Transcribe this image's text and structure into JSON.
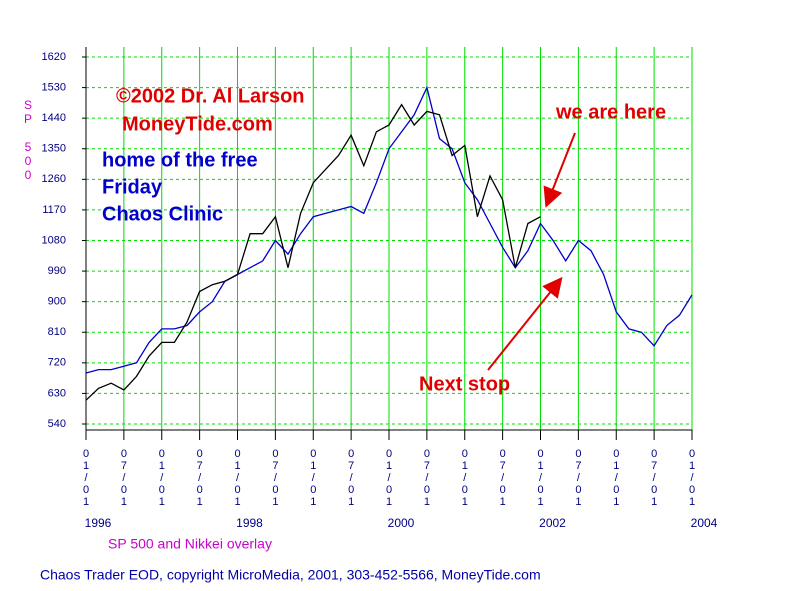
{
  "chart_data": {
    "type": "line",
    "annotations": {
      "copyright": "©2002  Dr. Al Larson",
      "site": "MoneyTide.com",
      "home": "home of the free",
      "friday": "Friday",
      "clinic": "Chaos Clinic",
      "here": "we are here",
      "next": "Next stop"
    },
    "y_label": "SP 500",
    "subtitle": "SP 500 and Nikkei overlay",
    "footer": "Chaos Trader EOD, copyright MicroMedia, 2001, 303-452-5566, MoneyTide.com",
    "x": [
      "1996-01-01",
      "1996-03-01",
      "1996-05-01",
      "1996-07-01",
      "1996-09-01",
      "1996-11-01",
      "1997-01-01",
      "1997-03-01",
      "1997-05-01",
      "1997-07-01",
      "1997-09-01",
      "1997-11-01",
      "1998-01-01",
      "1998-03-01",
      "1998-05-01",
      "1998-07-01",
      "1998-09-01",
      "1998-11-01",
      "1999-01-01",
      "1999-03-01",
      "1999-05-01",
      "1999-07-01",
      "1999-09-01",
      "1999-11-01",
      "2000-01-01",
      "2000-03-01",
      "2000-05-01",
      "2000-07-01",
      "2000-09-01",
      "2000-11-01",
      "2001-01-01",
      "2001-03-01",
      "2001-05-01",
      "2001-07-01",
      "2001-09-01",
      "2001-11-01",
      "2002-01-01",
      "2002-03-01",
      "2002-05-01",
      "2002-07-01",
      "2002-09-01",
      "2002-11-01",
      "2003-01-01",
      "2003-03-01",
      "2003-05-01",
      "2003-07-01",
      "2003-09-01",
      "2003-11-01",
      "2004-01-01"
    ],
    "series": [
      {
        "name": "SP 500",
        "color": "#000000",
        "values": [
          610,
          645,
          660,
          640,
          680,
          740,
          780,
          780,
          840,
          930,
          950,
          960,
          980,
          1100,
          1100,
          1150,
          1000,
          1160,
          1250,
          1290,
          1330,
          1390,
          1300,
          1400,
          1420,
          1480,
          1420,
          1460,
          1450,
          1330,
          1360,
          1150,
          1270,
          1200,
          1000,
          1130,
          1150,
          null,
          null,
          null,
          null,
          null,
          null,
          null,
          null,
          null,
          null,
          null,
          null
        ]
      },
      {
        "name": "Nikkei",
        "color": "#0000cc",
        "values": [
          690,
          700,
          700,
          710,
          720,
          780,
          820,
          820,
          830,
          870,
          900,
          960,
          980,
          1000,
          1020,
          1080,
          1040,
          1100,
          1150,
          1160,
          1170,
          1180,
          1160,
          1250,
          1350,
          1400,
          1450,
          1530,
          1380,
          1350,
          1250,
          1200,
          1130,
          1060,
          1000,
          1050,
          1130,
          1080,
          1020,
          1080,
          1050,
          980,
          870,
          820,
          810,
          770,
          830,
          860,
          920
        ]
      }
    ],
    "xlim": [
      "1996-01-01",
      "2004-01-01"
    ],
    "xticks": [
      {
        "value": "1996-01-01",
        "label": "01/01"
      },
      {
        "value": "1996-07-01",
        "label": "07/01"
      },
      {
        "value": "1997-01-01",
        "label": "01/01"
      },
      {
        "value": "1997-07-01",
        "label": "07/01"
      },
      {
        "value": "1998-01-01",
        "label": "01/01"
      },
      {
        "value": "1998-07-01",
        "label": "07/01"
      },
      {
        "value": "1999-01-01",
        "label": "01/01"
      },
      {
        "value": "1999-07-01",
        "label": "07/01"
      },
      {
        "value": "2000-01-01",
        "label": "01/01"
      },
      {
        "value": "2000-07-01",
        "label": "07/01"
      },
      {
        "value": "2001-01-01",
        "label": "01/01"
      },
      {
        "value": "2001-07-01",
        "label": "07/01"
      },
      {
        "value": "2002-01-01",
        "label": "01/01"
      },
      {
        "value": "2002-07-01",
        "label": "07/01"
      },
      {
        "value": "2003-01-01",
        "label": "01/01"
      },
      {
        "value": "2003-07-01",
        "label": "07/01"
      },
      {
        "value": "2004-01-01",
        "label": "01/01"
      }
    ],
    "year_labels": [
      {
        "value": "1996-01-01",
        "label": "1996"
      },
      {
        "value": "1998-01-01",
        "label": "1998"
      },
      {
        "value": "2000-01-01",
        "label": "2000"
      },
      {
        "value": "2002-01-01",
        "label": "2002"
      },
      {
        "value": "2004-01-01",
        "label": "2004"
      }
    ],
    "ylim": [
      540,
      1620
    ],
    "yticks": [
      540,
      630,
      720,
      810,
      900,
      990,
      1080,
      1170,
      1260,
      1350,
      1440,
      1530,
      1620
    ],
    "grid": true,
    "grid_color": "#00dd00"
  }
}
